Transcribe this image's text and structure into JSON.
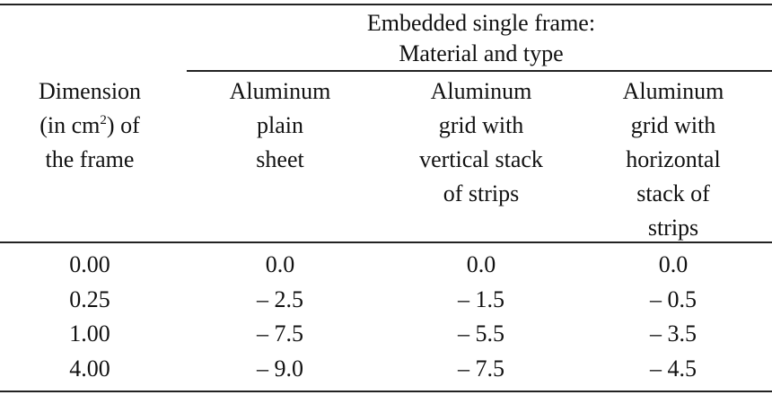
{
  "table": {
    "group_header": [
      "Embedded single frame:",
      "Material and type"
    ],
    "dimension_header": [
      "Dimension",
      [
        "(in cm",
        "2",
        ") of"
      ],
      "the frame"
    ],
    "column_headers": [
      [
        "Aluminum",
        "plain",
        "sheet"
      ],
      [
        "Aluminum",
        "grid with",
        "vertical stack",
        "of strips"
      ],
      [
        "Aluminum",
        "grid with",
        "horizontal",
        "stack of",
        "strips"
      ]
    ],
    "rows": [
      [
        "0.00",
        "0.0",
        "0.0",
        "0.0"
      ],
      [
        "0.25",
        "– 2.5",
        "– 1.5",
        "– 0.5"
      ],
      [
        "1.00",
        "– 7.5",
        "– 5.5",
        "– 3.5"
      ],
      [
        "4.00",
        "– 9.0",
        "– 7.5",
        "– 4.5"
      ]
    ]
  }
}
